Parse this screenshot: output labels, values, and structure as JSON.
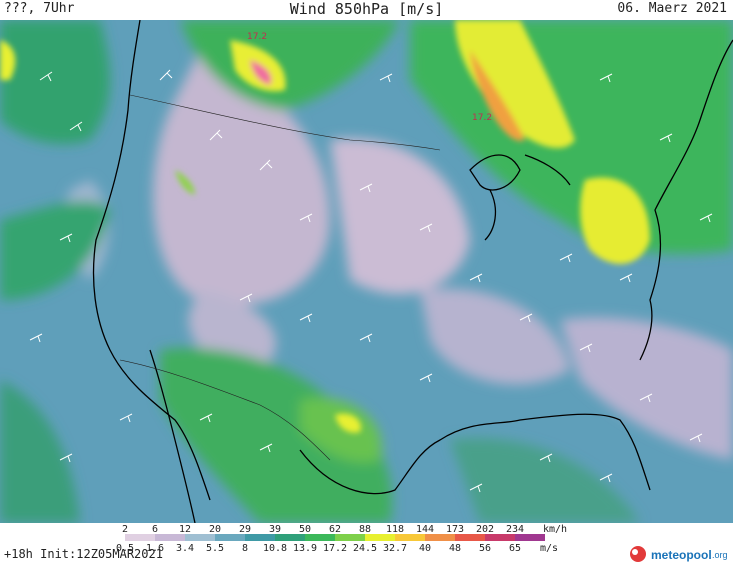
{
  "header": {
    "left": "???, 7Uhr",
    "title": "Wind 850hPa [m/s]",
    "date": "06. Maerz 2021"
  },
  "map_labels": {
    "max_value_1": "17.2",
    "max_value_2": "17.2"
  },
  "legend": {
    "kmh_values": [
      "2",
      "6",
      "12",
      "20",
      "29",
      "39",
      "50",
      "62",
      "88",
      "118",
      "144",
      "173",
      "202",
      "234"
    ],
    "kmh_unit": "km/h",
    "ms_values": [
      "0.5",
      "1.6",
      "3.4",
      "5.5",
      "8",
      "10.8",
      "13.9",
      "17.2",
      "24.5",
      "32.7",
      "40",
      "48",
      "56",
      "65"
    ],
    "ms_unit": "m/s",
    "colors": [
      "#ffffff",
      "#e0d0e2",
      "#c8b8d6",
      "#9fbfd2",
      "#6aa8be",
      "#3f9aa6",
      "#2fa07a",
      "#3cb85a",
      "#7ed04a",
      "#e8f030",
      "#f8c838",
      "#f09048",
      "#e85848",
      "#c83a6a",
      "#a03890"
    ]
  },
  "footer": {
    "run_info": "+18h Init:12Z05MAR2021"
  },
  "brand": {
    "name": "meteopool",
    "tld": ".org"
  }
}
